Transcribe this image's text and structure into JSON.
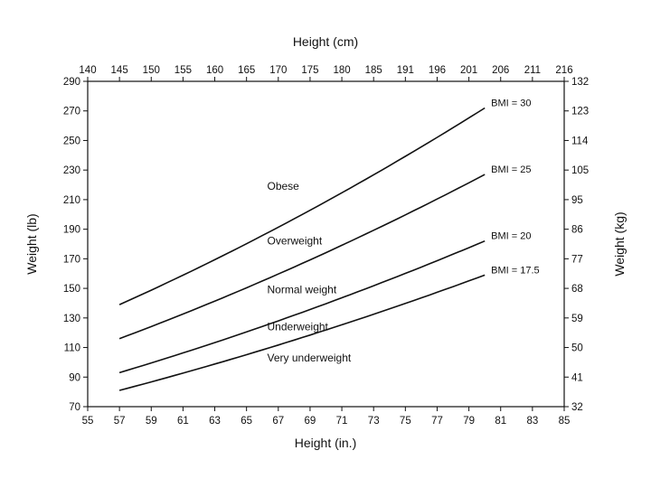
{
  "chart_data": {
    "type": "line",
    "xlabel_bottom": "Height (in.)",
    "xlabel_top": "Height (cm)",
    "ylabel_left": "Weight (lb)",
    "ylabel_right": "Weight (kg)",
    "xlim": [
      55,
      85
    ],
    "ylim": [
      70,
      290
    ],
    "x_ticks_bottom": [
      "55",
      "57",
      "59",
      "61",
      "63",
      "65",
      "67",
      "69",
      "71",
      "73",
      "75",
      "77",
      "79",
      "81",
      "83",
      "85"
    ],
    "x_ticks_top": [
      "140",
      "145",
      "150",
      "155",
      "160",
      "165",
      "170",
      "175",
      "180",
      "185",
      "191",
      "196",
      "201",
      "206",
      "211",
      "216"
    ],
    "y_ticks_left": [
      "70",
      "90",
      "110",
      "130",
      "150",
      "170",
      "190",
      "210",
      "230",
      "250",
      "270",
      "290"
    ],
    "y_ticks_right": [
      "32",
      "41",
      "50",
      "59",
      "68",
      "77",
      "86",
      "95",
      "105",
      "114",
      "123",
      "132"
    ],
    "grid": false,
    "x": [
      57,
      80
    ],
    "series": [
      {
        "name": "BMI = 30",
        "values": [
          139,
          272
        ]
      },
      {
        "name": "BMI = 25",
        "values": [
          116,
          227
        ]
      },
      {
        "name": "BMI = 20",
        "values": [
          93,
          182
        ]
      },
      {
        "name": "BMI = 17.5",
        "values": [
          81,
          159
        ]
      }
    ],
    "regions": [
      {
        "label": "Obese",
        "x": 66.3,
        "y": 219
      },
      {
        "label": "Overweight",
        "x": 66.3,
        "y": 182
      },
      {
        "label": "Normal weight",
        "x": 66.3,
        "y": 149
      },
      {
        "label": "Underweight",
        "x": 66.3,
        "y": 124
      },
      {
        "label": "Very underweight",
        "x": 66.3,
        "y": 103
      }
    ]
  }
}
